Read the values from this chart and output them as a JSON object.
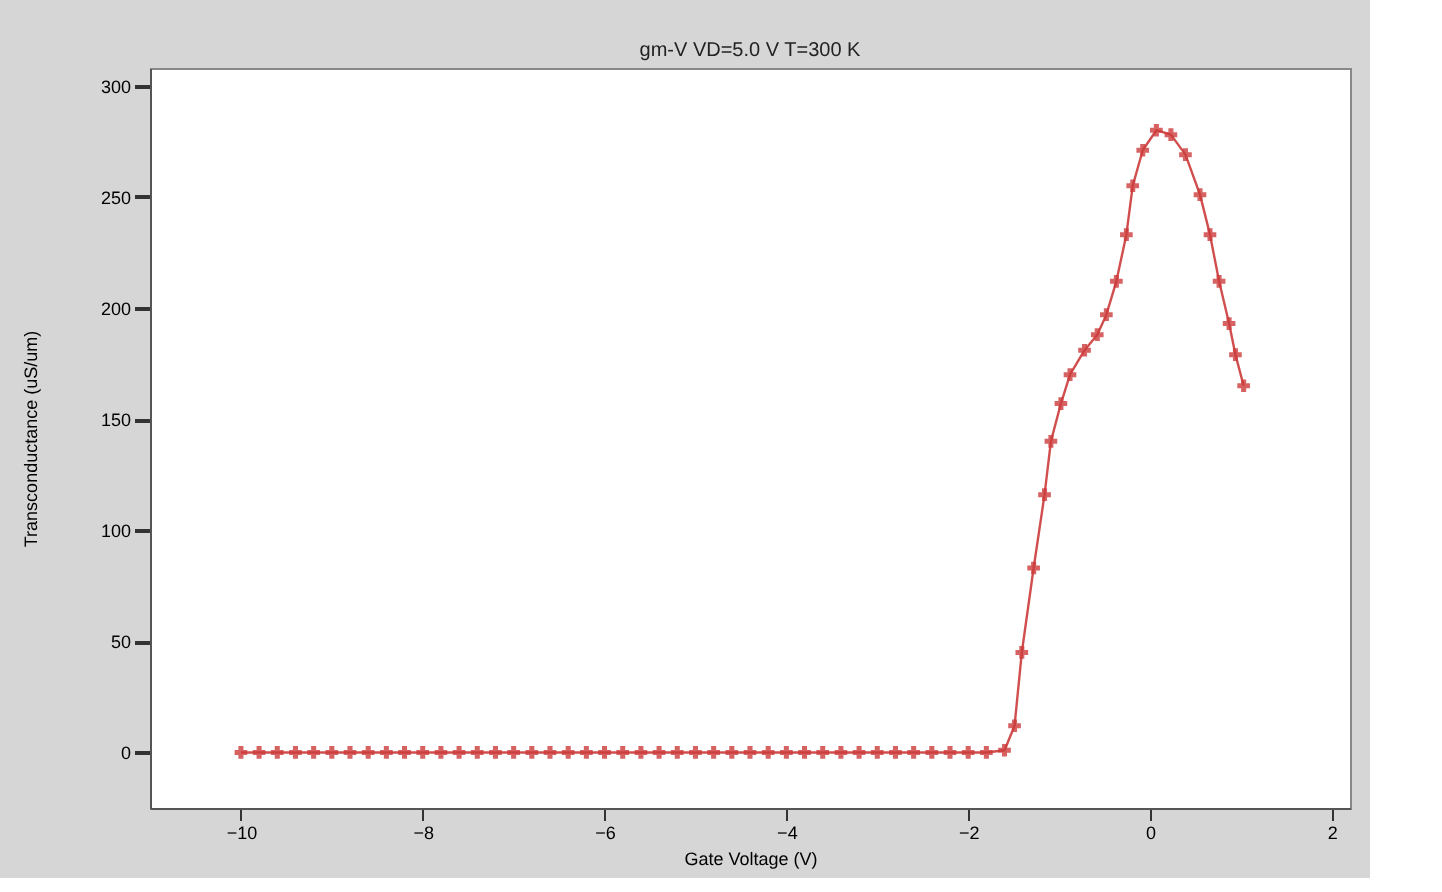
{
  "chart_data": {
    "type": "line",
    "subtitle": "gm-V VD=5.0 V T=300 K",
    "xlabel": "Gate Voltage (V)",
    "ylabel": "Transconductance (uS/um)",
    "x": [
      -10,
      -9.8,
      -9.6,
      -9.4,
      -9.2,
      -9,
      -8.8,
      -8.6,
      -8.4,
      -8.2,
      -8,
      -7.8,
      -7.6,
      -7.4,
      -7.2,
      -7,
      -6.8,
      -6.6,
      -6.4,
      -6.2,
      -6,
      -5.8,
      -5.6,
      -5.4,
      -5.2,
      -5,
      -4.8,
      -4.6,
      -4.4,
      -4.2,
      -4,
      -3.8,
      -3.6,
      -3.4,
      -3.2,
      -3,
      -2.8,
      -2.6,
      -2.4,
      -2.2,
      -2,
      -1.8,
      -1.6,
      -1.49,
      -1.41,
      -1.28,
      -1.16,
      -1.09,
      -0.98,
      -0.88,
      -0.72,
      -0.58,
      -0.48,
      -0.37,
      -0.26,
      -0.19,
      -0.08,
      0.07,
      0.23,
      0.39,
      0.55,
      0.66,
      0.76,
      0.87,
      0.94,
      1.03
    ],
    "series": [
      {
        "color": "#cc3b3b",
        "values": [
          0,
          0,
          0,
          0,
          0,
          0,
          0,
          0,
          0,
          0,
          0,
          0,
          0,
          0,
          0,
          0,
          0,
          0,
          0,
          0,
          0,
          0,
          0,
          0,
          0,
          0,
          0,
          0,
          0,
          0,
          0,
          0,
          0,
          0,
          0,
          0,
          0,
          0,
          0,
          0,
          0,
          0,
          1,
          12,
          45,
          83,
          116,
          140,
          157,
          170,
          181,
          188,
          197,
          212,
          233,
          255,
          271,
          280,
          278,
          269,
          251,
          233,
          212,
          193,
          179,
          165
        ]
      }
    ],
    "xlim": [
      -11,
      2.2
    ],
    "ylim": [
      -25,
      308
    ],
    "xticks": [
      -10,
      -8,
      -6,
      -4,
      -2,
      0,
      2
    ],
    "yticks": [
      0,
      50,
      100,
      150,
      200,
      250,
      300
    ],
    "grid": false,
    "marker": "cross",
    "line_style": "solid"
  }
}
